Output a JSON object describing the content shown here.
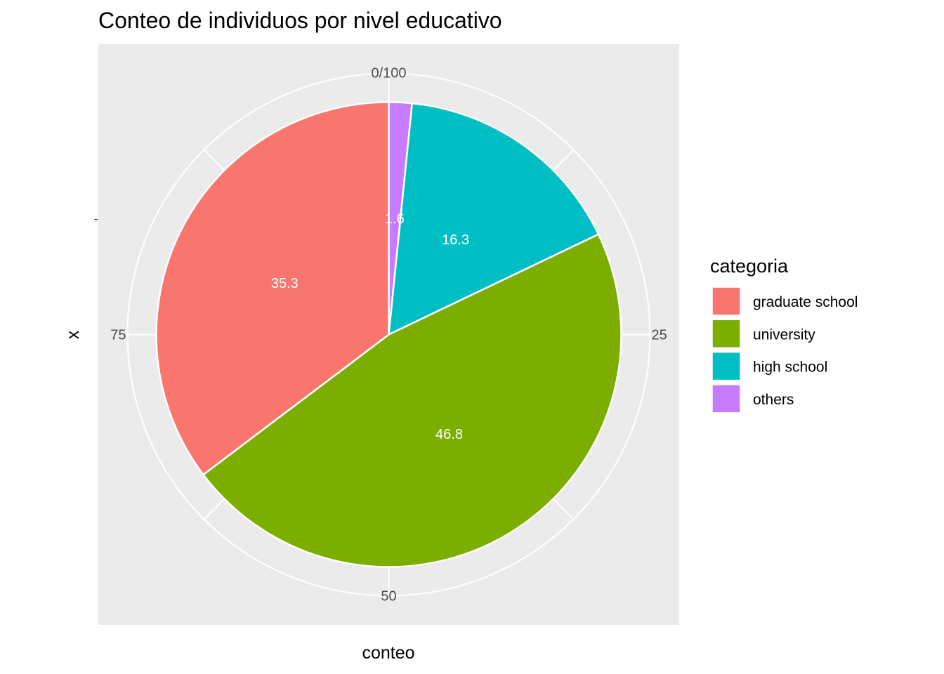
{
  "chart_data": {
    "type": "pie",
    "title": "Conteo de individuos por nivel educativo",
    "xlabel": "conteo",
    "ylabel": "x",
    "y_tick": "-",
    "theta_range": [
      0,
      100
    ],
    "theta_ticks": [
      {
        "value": 0,
        "label": "0/100"
      },
      {
        "value": 25,
        "label": "25"
      },
      {
        "value": 50,
        "label": "50"
      },
      {
        "value": 75,
        "label": "75"
      }
    ],
    "direction": "clockwise",
    "start": "top",
    "grid": true,
    "legend_position": "right",
    "legend_title": "categoria",
    "slices": [
      {
        "label": "graduate school",
        "value": 35.3,
        "color": "#F8766D"
      },
      {
        "label": "university",
        "value": 46.8,
        "color": "#7CAE00"
      },
      {
        "label": "high school",
        "value": 16.3,
        "color": "#00BFC4"
      },
      {
        "label": "others",
        "value": 1.6,
        "color": "#C77CFF"
      }
    ],
    "stack_order": [
      "others",
      "high school",
      "university",
      "graduate school"
    ],
    "colors": {
      "panel": "#EBEBEB",
      "grid": "#FFFFFF",
      "slice_border": "#FFFFFF"
    }
  }
}
